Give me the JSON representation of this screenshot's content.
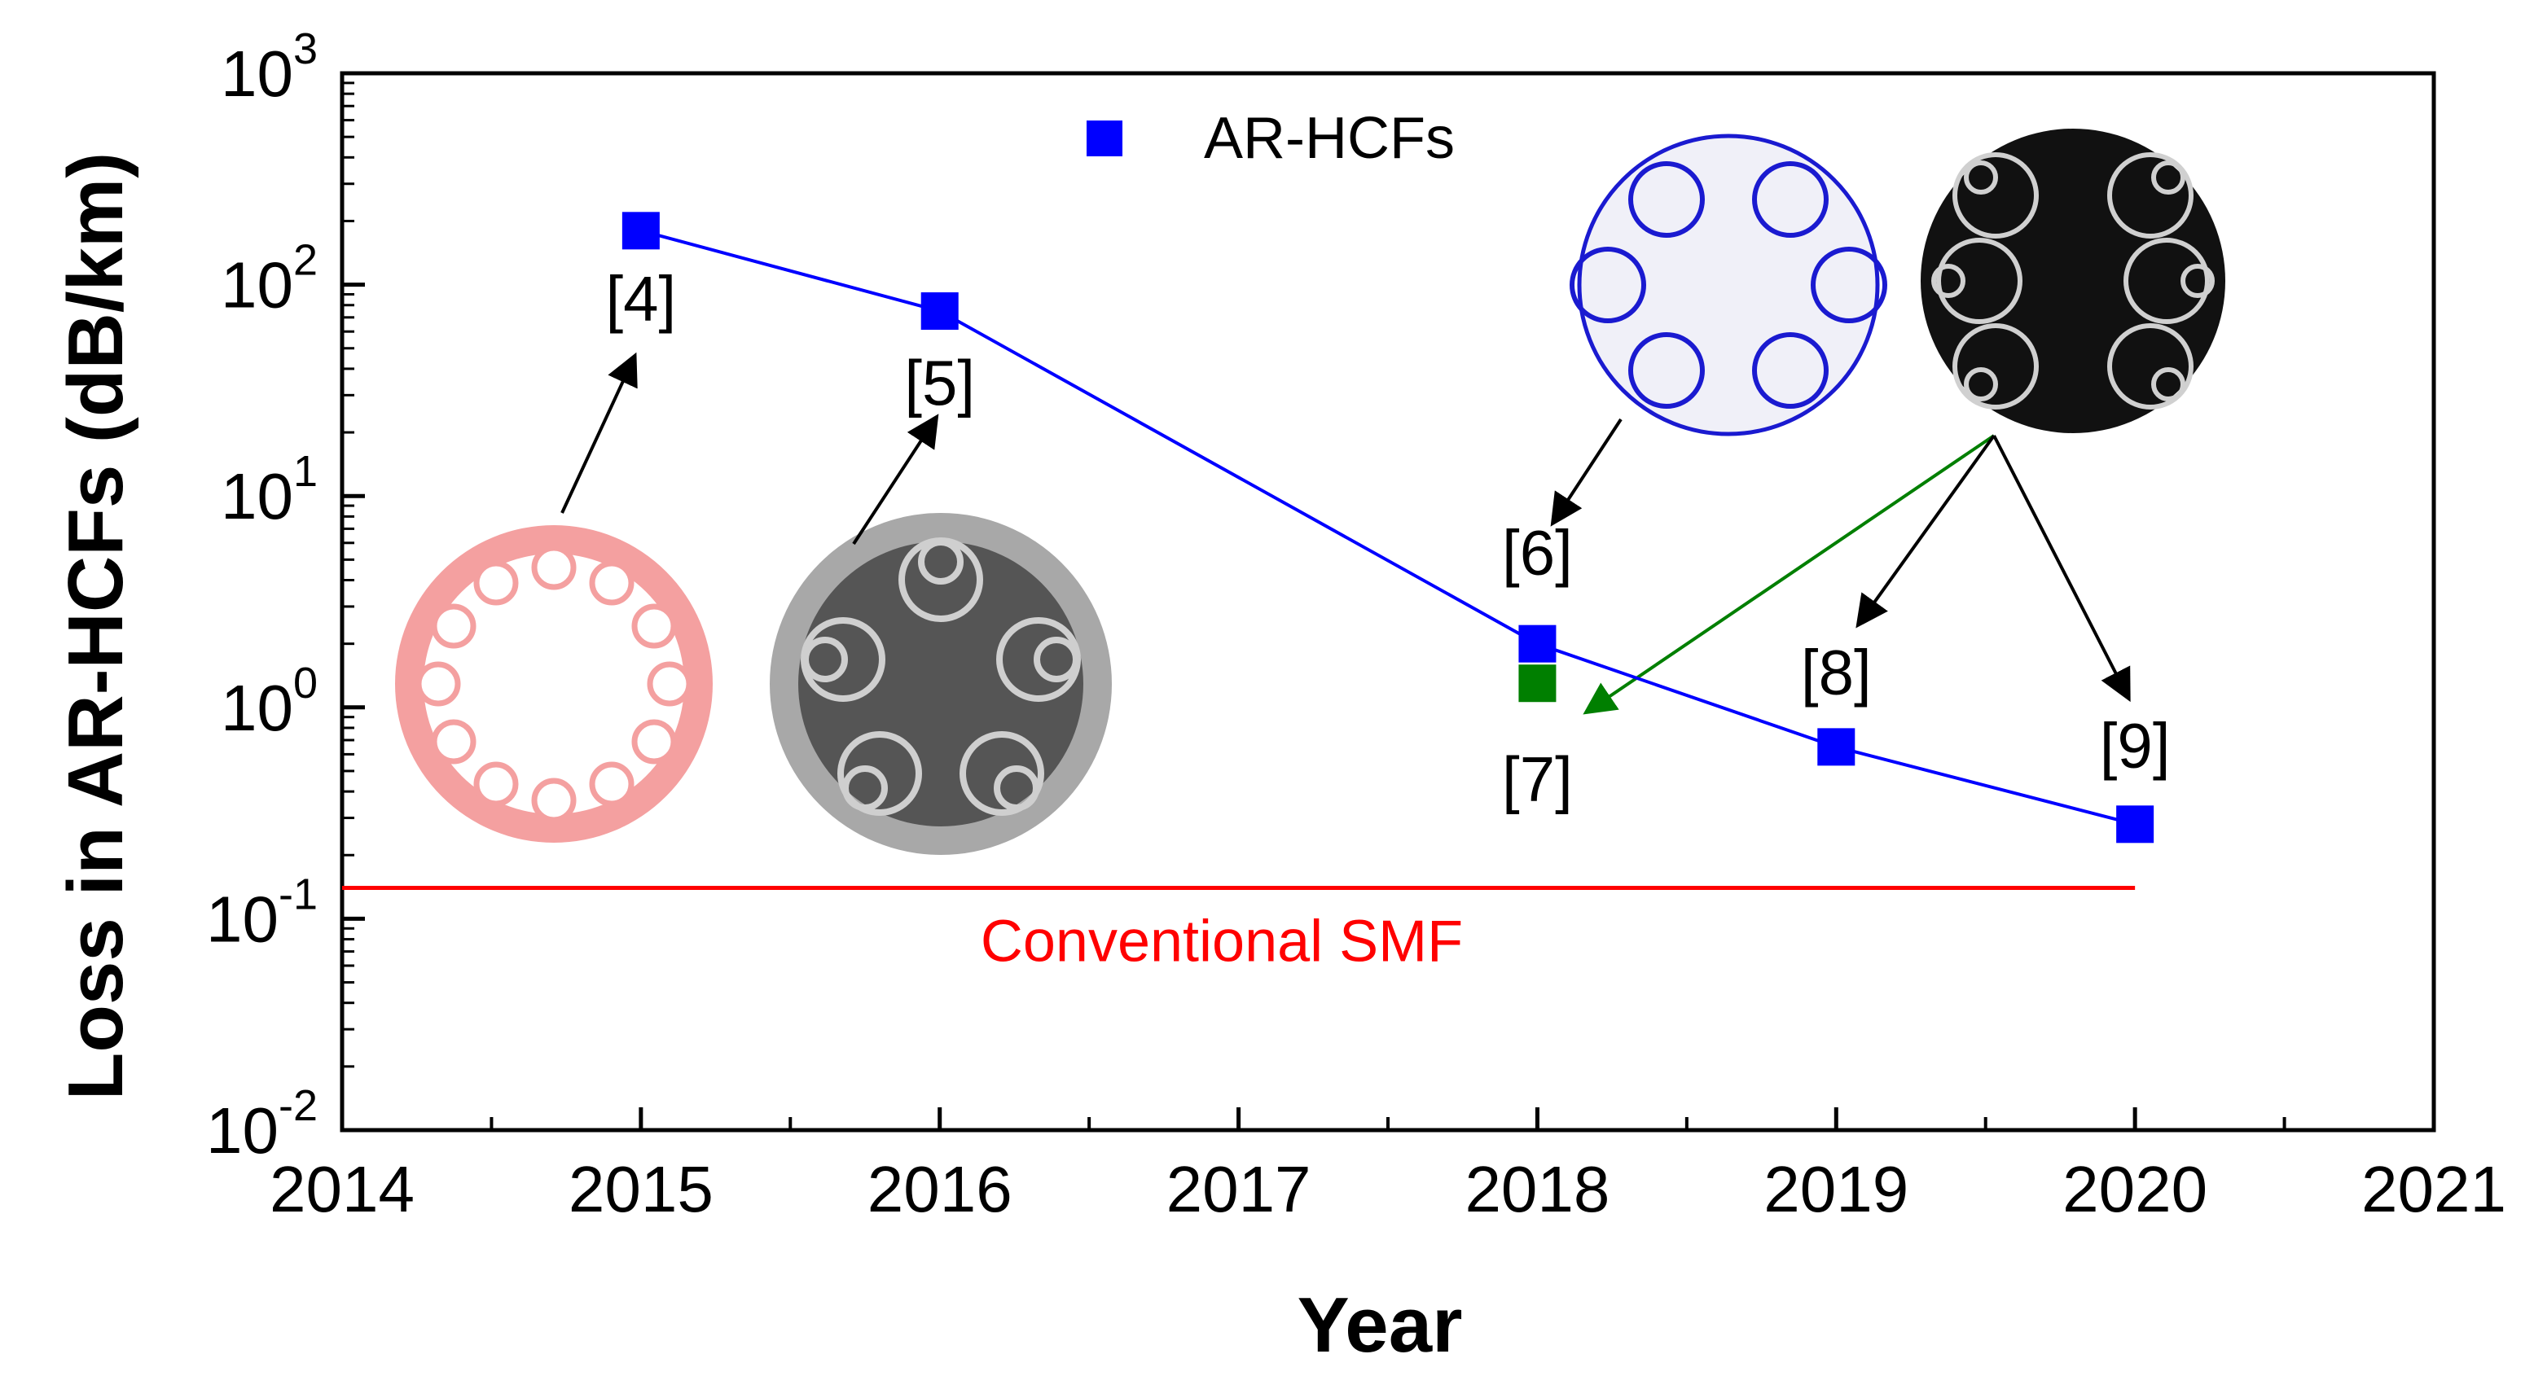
{
  "chart_data": {
    "type": "scatter",
    "xlabel": "Year",
    "ylabel": "Loss in AR-HCFs (dB/km)",
    "xlim": [
      2014,
      2021
    ],
    "ylim": [
      0.01,
      1000
    ],
    "yscale": "log",
    "x_ticks": [
      "2014",
      "2015",
      "2016",
      "2017",
      "2018",
      "2019",
      "2020",
      "2021"
    ],
    "y_ticks": [
      {
        "base": "10",
        "exp": "3"
      },
      {
        "base": "10",
        "exp": "2"
      },
      {
        "base": "10",
        "exp": "1"
      },
      {
        "base": "10",
        "exp": "0"
      },
      {
        "base": "10",
        "exp": "-1"
      },
      {
        "base": "10",
        "exp": "-2"
      }
    ],
    "legend": {
      "position": "top-center",
      "entries": [
        "AR-HCFs"
      ]
    },
    "series": [
      {
        "name": "AR-HCFs",
        "color": "#0000ff",
        "marker": "square",
        "line": true,
        "points": [
          {
            "x": 2015,
            "y": 180,
            "label": "[4]"
          },
          {
            "x": 2016,
            "y": 75,
            "label": "[5]"
          },
          {
            "x": 2018,
            "y": 2.0,
            "label": "[6]"
          },
          {
            "x": 2019,
            "y": 0.65,
            "label": "[8]"
          },
          {
            "x": 2020,
            "y": 0.28,
            "label": "[9]"
          }
        ]
      },
      {
        "color": "#007f00",
        "marker": "square",
        "line": false,
        "points": [
          {
            "x": 2018,
            "y": 1.3,
            "label": "[7]"
          }
        ]
      }
    ],
    "reference_line": {
      "label": "Conventional SMF",
      "y": 0.14,
      "x_from": 2014,
      "x_to": 2020,
      "color": "#ff0000"
    },
    "grid": false
  }
}
